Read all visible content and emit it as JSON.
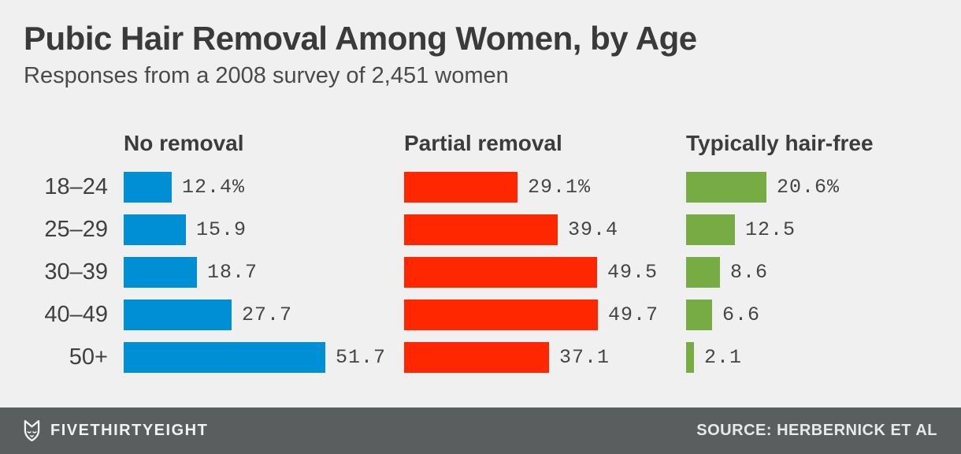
{
  "title": "Pubic Hair Removal Among Women, by Age",
  "subtitle": "Responses from a 2008 survey of 2,451 women",
  "footer": {
    "brand": "FIVETHIRTYEIGHT",
    "source": "SOURCE: HERBERNICK ET AL",
    "logo_icon": "fivethirtyeight-fox-logo"
  },
  "colors": {
    "background": "#f0f0f0",
    "footer_background": "#5b5e5f",
    "blue": "#008fd5",
    "red": "#ff2700",
    "green": "#77ab43",
    "text": "#3c3c3c"
  },
  "chart_data": {
    "type": "bar",
    "orientation": "horizontal",
    "title": "Pubic Hair Removal Among Women, by Age",
    "subtitle": "Responses from a 2008 survey of 2,451 women",
    "categories": [
      "18–24",
      "25–29",
      "30–39",
      "40–49",
      "50+"
    ],
    "series": [
      {
        "name": "No removal",
        "color": "#008fd5",
        "values": [
          12.4,
          15.9,
          18.7,
          27.7,
          51.7
        ],
        "labels": [
          "12.4%",
          "15.9",
          "18.7",
          "27.7",
          "51.7"
        ]
      },
      {
        "name": "Partial removal",
        "color": "#ff2700",
        "values": [
          29.1,
          39.4,
          49.5,
          49.7,
          37.1
        ],
        "labels": [
          "29.1%",
          "39.4",
          "49.5",
          "49.7",
          "37.1"
        ]
      },
      {
        "name": "Typically hair-free",
        "color": "#77ab43",
        "values": [
          20.6,
          12.5,
          8.6,
          6.6,
          2.1
        ],
        "labels": [
          "20.6%",
          "12.5",
          "8.6",
          "6.6",
          "2.1"
        ]
      }
    ],
    "xlim": [
      0,
      52
    ],
    "grid": false,
    "legend_position": "column-headers",
    "source": "SOURCE: HERBERNICK ET AL"
  }
}
